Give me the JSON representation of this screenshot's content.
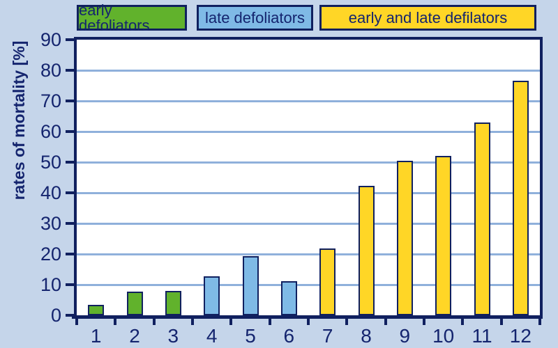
{
  "colors": {
    "background": "#C5D5EA",
    "plot_background": "#FFFFFF",
    "navy_border": "#10205F",
    "navy_text": "#14246E",
    "gridline": "#8FB0DB",
    "green": "#61B22C",
    "blue": "#7FBAE6",
    "yellow": "#FFD626"
  },
  "legend": {
    "items": [
      {
        "label": "early defoliators",
        "color": "#61B22C"
      },
      {
        "label": "late defoliators",
        "color": "#7FBAE6"
      },
      {
        "label": "early and late defilators",
        "color": "#FFD626"
      }
    ]
  },
  "chart_data": {
    "type": "bar",
    "title": "",
    "xlabel": "",
    "ylabel": "rates of mortality [%]",
    "ylim": [
      0,
      90
    ],
    "yticks": [
      0,
      10,
      20,
      30,
      40,
      50,
      60,
      70,
      80,
      90
    ],
    "grid": true,
    "legend_position": "top",
    "categories": [
      "1",
      "2",
      "3",
      "4",
      "5",
      "6",
      "7",
      "8",
      "9",
      "10",
      "11",
      "12"
    ],
    "values": [
      3.5,
      7.7,
      8.0,
      12.8,
      19.4,
      11.1,
      21.8,
      42.2,
      50.4,
      52.0,
      63.0,
      76.5
    ],
    "series": [
      {
        "name": "early defoliators",
        "color": "#61B22C",
        "categories": [
          "1",
          "2",
          "3"
        ],
        "values": [
          3.5,
          7.7,
          8.0
        ]
      },
      {
        "name": "late defoliators",
        "color": "#7FBAE6",
        "categories": [
          "4",
          "5",
          "6"
        ],
        "values": [
          12.8,
          19.4,
          11.1
        ]
      },
      {
        "name": "early and late defilators",
        "color": "#FFD626",
        "categories": [
          "7",
          "8",
          "9",
          "10",
          "11",
          "12"
        ],
        "values": [
          21.8,
          42.2,
          50.4,
          52.0,
          63.0,
          76.5
        ]
      }
    ],
    "group_of_bar": [
      0,
      0,
      0,
      1,
      1,
      1,
      2,
      2,
      2,
      2,
      2,
      2
    ]
  }
}
